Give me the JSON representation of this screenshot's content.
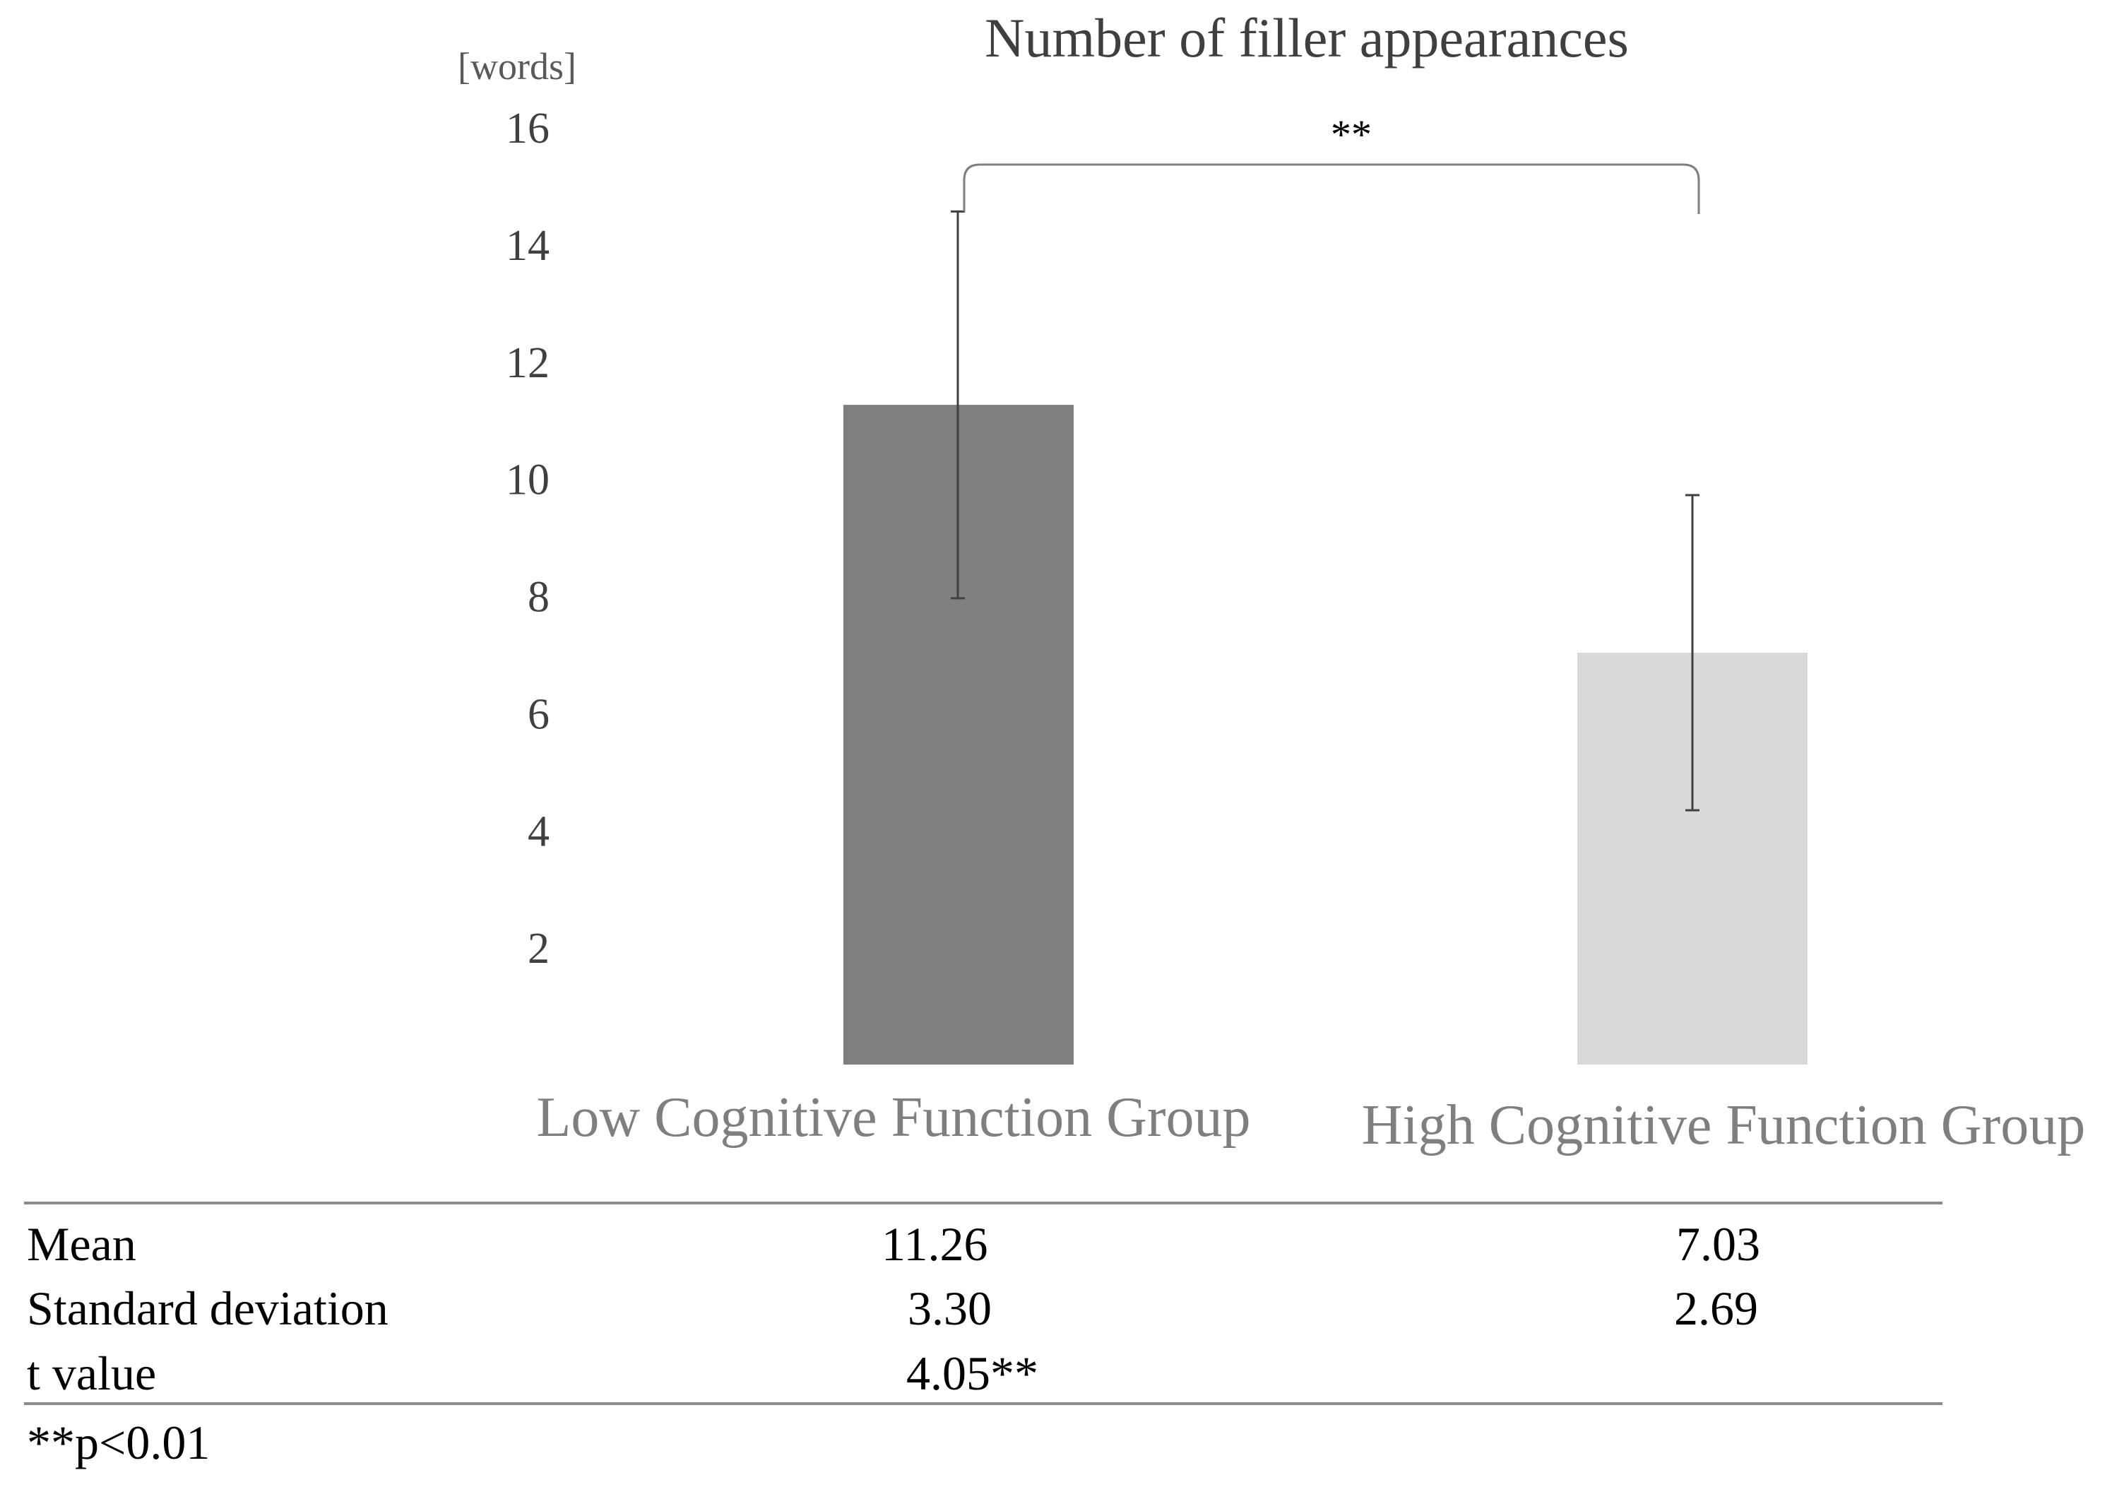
{
  "chart_data": {
    "type": "bar",
    "title": "Number of filler appearances",
    "ylabel": "[words]",
    "xlabel": "",
    "categories": [
      "Low Cognitive Function Group",
      "High Cognitive Function Group"
    ],
    "values": [
      11.26,
      7.03
    ],
    "error": [
      3.3,
      2.69
    ],
    "ylim": [
      0,
      16
    ],
    "yticks": [
      2,
      4,
      6,
      8,
      10,
      12,
      14,
      16
    ],
    "colors": [
      "#7f7f7f",
      "#d9d9d9"
    ],
    "significance": "**",
    "grid": false,
    "legend": "none"
  },
  "table": {
    "rows": [
      {
        "label": "Mean",
        "low": "11.26",
        "high": "7.03"
      },
      {
        "label": "Standard deviation",
        "low": "3.30",
        "high": "2.69"
      },
      {
        "label": "t value",
        "low": "4.05**",
        "high": ""
      }
    ],
    "footnote": "**p<0.01"
  }
}
